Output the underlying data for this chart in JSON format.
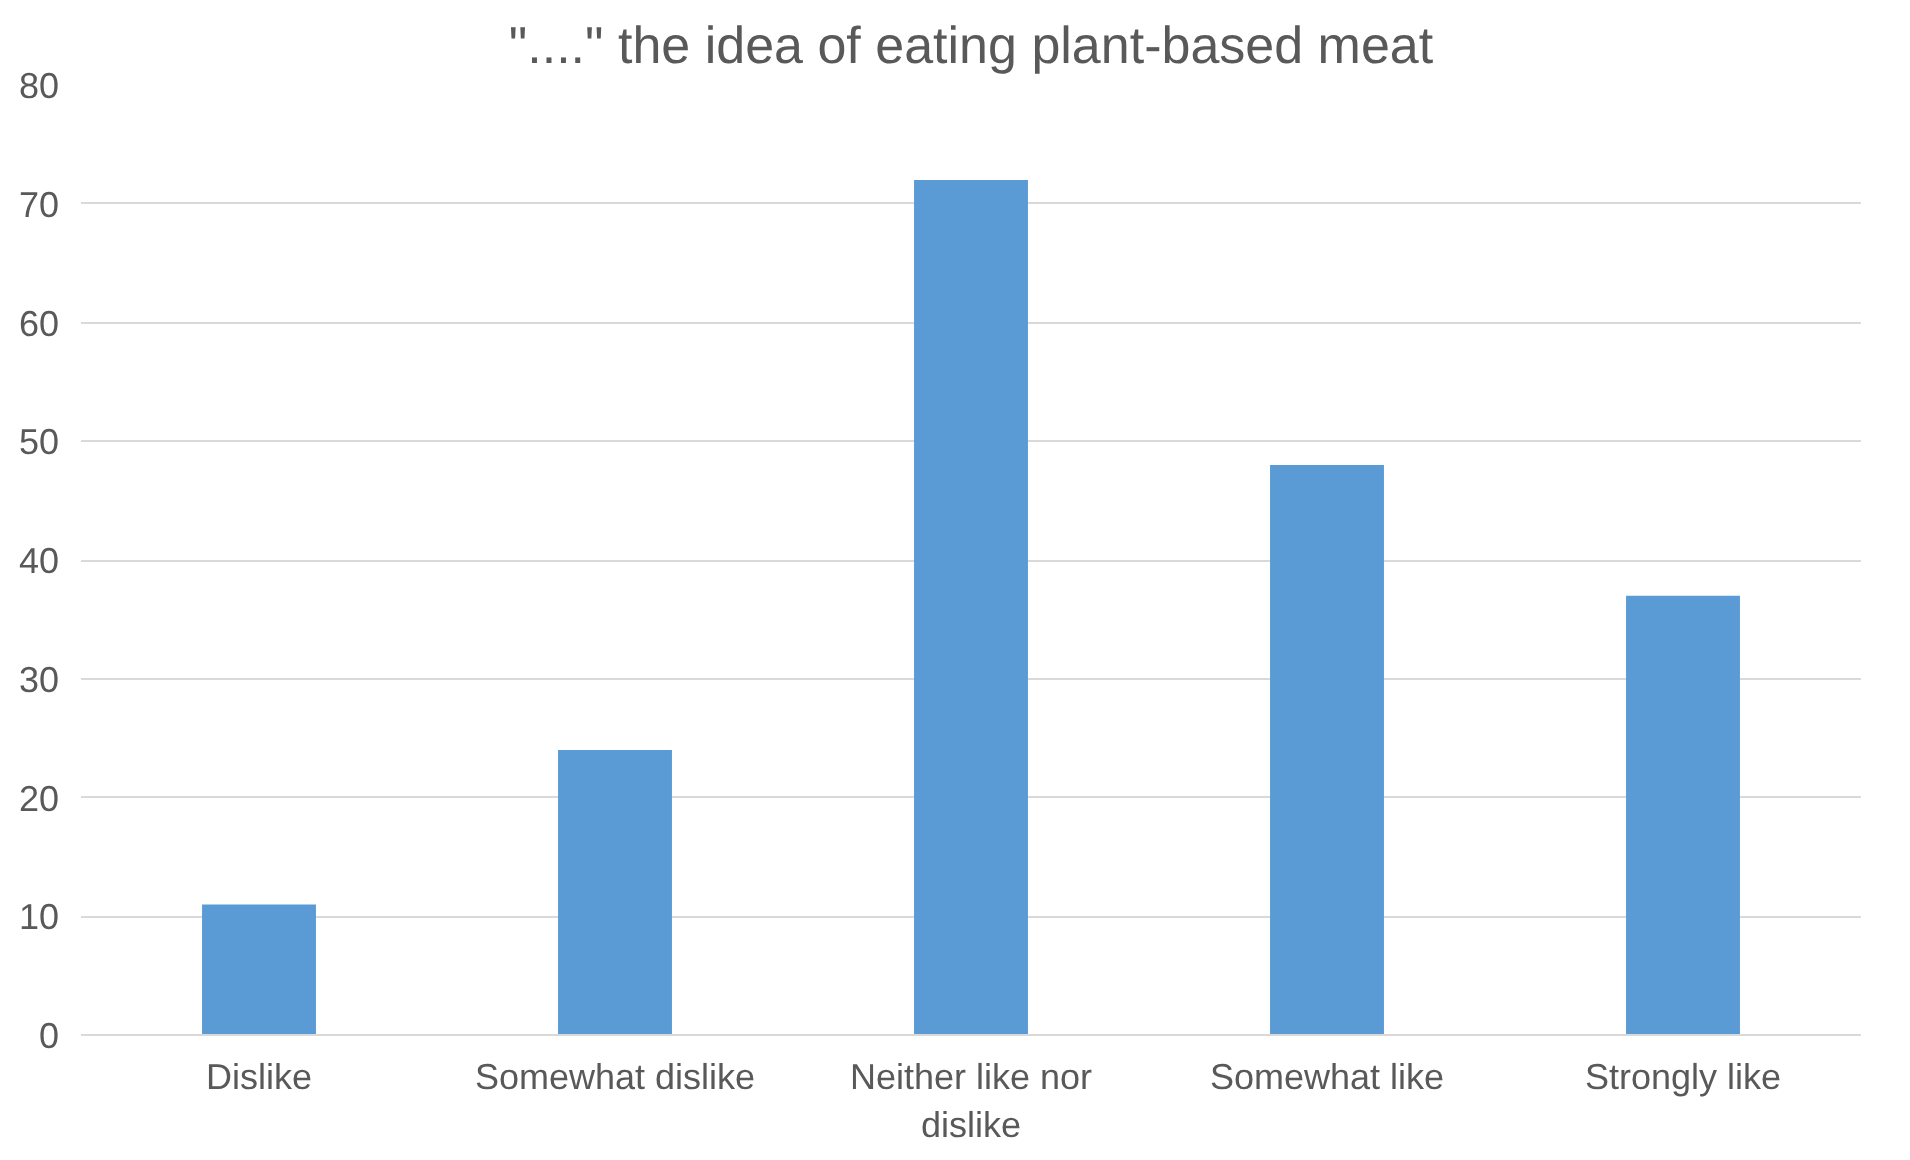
{
  "chart_data": {
    "type": "bar",
    "title": "\"....\" the idea of eating plant-based meat",
    "categories": [
      "Dislike",
      "Somewhat dislike",
      "Neither like nor dislike",
      "Somewhat like",
      "Strongly like"
    ],
    "values": [
      11,
      24,
      72,
      48,
      37
    ],
    "color": "#5b9bd5",
    "ylim": [
      0,
      80
    ],
    "yticks": [
      0,
      10,
      20,
      30,
      40,
      50,
      60,
      70,
      80
    ],
    "grid": "y"
  }
}
